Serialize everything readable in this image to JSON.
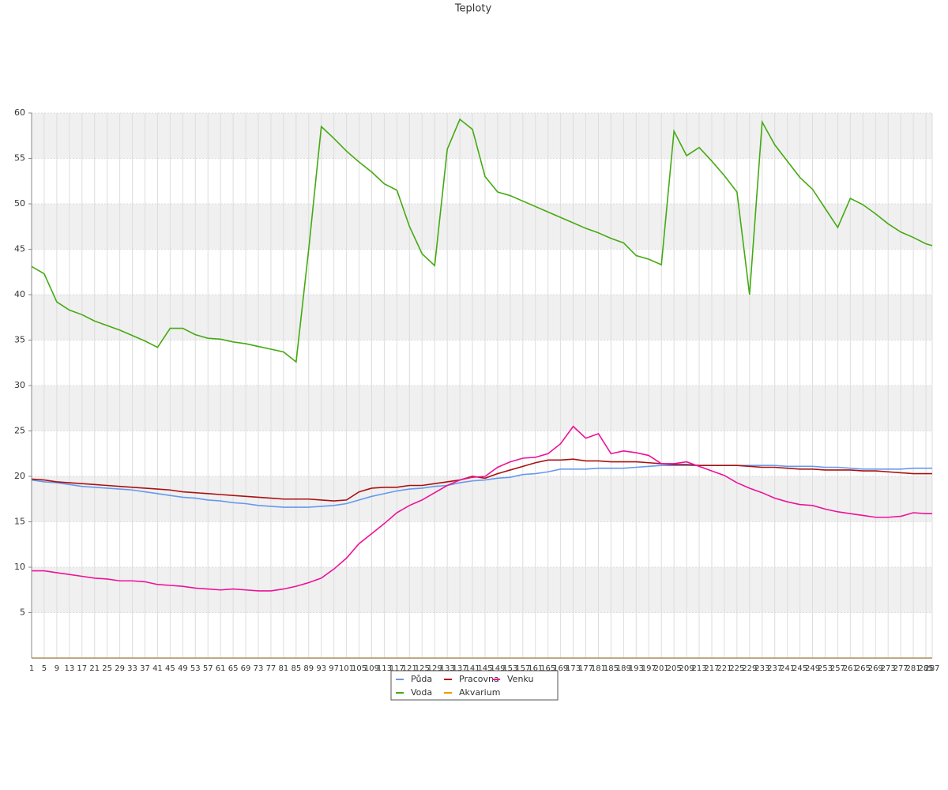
{
  "chart_data": {
    "type": "line",
    "title": "Teploty",
    "x": [
      1,
      5,
      9,
      13,
      17,
      21,
      25,
      29,
      33,
      37,
      41,
      45,
      49,
      53,
      57,
      61,
      65,
      69,
      73,
      77,
      81,
      85,
      89,
      93,
      97,
      101,
      105,
      109,
      113,
      117,
      121,
      125,
      129,
      133,
      137,
      141,
      145,
      149,
      153,
      157,
      161,
      165,
      169,
      173,
      177,
      181,
      185,
      189,
      193,
      197,
      201,
      205,
      209,
      213,
      217,
      221,
      225,
      229,
      233,
      237,
      241,
      245,
      249,
      253,
      257,
      261,
      265,
      269,
      273,
      277,
      281,
      285,
      287
    ],
    "xlim": [
      1,
      287
    ],
    "ylim": [
      0,
      60
    ],
    "yticks": [
      5,
      10,
      15,
      20,
      25,
      30,
      35,
      40,
      45,
      50,
      55,
      60
    ],
    "grid": true,
    "series": [
      {
        "name": "Půda",
        "color": "#6699ee",
        "values": [
          19.6,
          19.4,
          19.3,
          19.1,
          18.9,
          18.8,
          18.7,
          18.6,
          18.5,
          18.3,
          18.1,
          17.9,
          17.7,
          17.6,
          17.4,
          17.3,
          17.1,
          17.0,
          16.8,
          16.7,
          16.6,
          16.6,
          16.6,
          16.7,
          16.8,
          17.0,
          17.4,
          17.8,
          18.1,
          18.4,
          18.6,
          18.7,
          18.9,
          19.0,
          19.3,
          19.5,
          19.6,
          19.8,
          19.9,
          20.2,
          20.3,
          20.5,
          20.8,
          20.8,
          20.8,
          20.9,
          20.9,
          20.9,
          21.0,
          21.1,
          21.2,
          21.2,
          21.2,
          21.2,
          21.2,
          21.2,
          21.2,
          21.2,
          21.2,
          21.2,
          21.1,
          21.1,
          21.1,
          21.0,
          21.0,
          20.9,
          20.8,
          20.8,
          20.8,
          20.8,
          20.9,
          20.9,
          20.9
        ]
      },
      {
        "name": "Voda",
        "color": "#44aa11",
        "values": [
          43.1,
          42.3,
          39.2,
          38.3,
          37.8,
          37.1,
          36.6,
          36.1,
          35.5,
          34.9,
          34.2,
          36.3,
          36.3,
          35.6,
          35.2,
          35.1,
          34.8,
          34.6,
          34.3,
          34.0,
          33.7,
          32.6,
          45,
          58.5,
          57.2,
          55.8,
          54.6,
          53.5,
          52.2,
          51.5,
          47.5,
          44.5,
          43.2,
          56,
          59.3,
          58.2,
          53,
          51.3,
          50.9,
          50.3,
          49.7,
          49.1,
          48.5,
          47.9,
          47.3,
          46.8,
          46.2,
          45.7,
          44.3,
          43.9,
          43.3,
          58,
          55.3,
          56.2,
          54.7,
          53.1,
          51.3,
          40,
          59,
          56.5,
          54.7,
          52.9,
          51.6,
          49.5,
          47.4,
          50.6,
          49.9,
          48.9,
          47.8,
          46.9,
          46.3,
          45.6,
          45.4
        ]
      },
      {
        "name": "Pracovna",
        "color": "#aa1111",
        "values": [
          19.7,
          19.6,
          19.4,
          19.3,
          19.2,
          19.1,
          19.0,
          18.9,
          18.8,
          18.7,
          18.6,
          18.5,
          18.3,
          18.2,
          18.1,
          18.0,
          17.9,
          17.8,
          17.7,
          17.6,
          17.5,
          17.5,
          17.5,
          17.4,
          17.3,
          17.4,
          18.3,
          18.7,
          18.8,
          18.8,
          19.0,
          19.0,
          19.2,
          19.4,
          19.6,
          20.0,
          19.8,
          20.3,
          20.7,
          21.1,
          21.5,
          21.8,
          21.8,
          21.9,
          21.7,
          21.7,
          21.6,
          21.6,
          21.6,
          21.5,
          21.4,
          21.3,
          21.3,
          21.2,
          21.2,
          21.2,
          21.2,
          21.1,
          21.0,
          21.0,
          20.9,
          20.8,
          20.8,
          20.7,
          20.7,
          20.7,
          20.6,
          20.6,
          20.5,
          20.4,
          20.3,
          20.3,
          20.3
        ]
      },
      {
        "name": "Akvarium",
        "color": "#ee9900",
        "values": [
          0,
          0,
          0,
          0,
          0,
          0,
          0,
          0,
          0,
          0,
          0,
          0,
          0,
          0,
          0,
          0,
          0,
          0,
          0,
          0,
          0,
          0,
          0,
          0,
          0,
          0,
          0,
          0,
          0,
          0,
          0,
          0,
          0,
          0,
          0,
          0,
          0,
          0,
          0,
          0,
          0,
          0,
          0,
          0,
          0,
          0,
          0,
          0,
          0,
          0,
          0,
          0,
          0,
          0,
          0,
          0,
          0,
          0,
          0,
          0,
          0,
          0,
          0,
          0,
          0,
          0,
          0,
          0,
          0,
          0,
          0,
          0,
          0
        ]
      },
      {
        "name": "Venku",
        "color": "#ee1199",
        "values": [
          9.6,
          9.6,
          9.4,
          9.2,
          9.0,
          8.8,
          8.7,
          8.5,
          8.5,
          8.4,
          8.1,
          8.0,
          7.9,
          7.7,
          7.6,
          7.5,
          7.6,
          7.5,
          7.4,
          7.4,
          7.6,
          7.9,
          8.3,
          8.8,
          9.8,
          11.0,
          12.6,
          13.7,
          14.8,
          16.0,
          16.8,
          17.4,
          18.2,
          19.0,
          19.6,
          19.9,
          20.0,
          21.0,
          21.6,
          22.0,
          22.1,
          22.5,
          23.6,
          25.5,
          24.2,
          24.7,
          22.5,
          22.8,
          22.6,
          22.3,
          21.4,
          21.4,
          21.6,
          21.1,
          20.6,
          20.1,
          19.3,
          18.7,
          18.2,
          17.6,
          17.2,
          16.9,
          16.8,
          16.4,
          16.1,
          15.9,
          15.7,
          15.5,
          15.5,
          15.6,
          16.0,
          15.9,
          15.9
        ]
      }
    ]
  }
}
